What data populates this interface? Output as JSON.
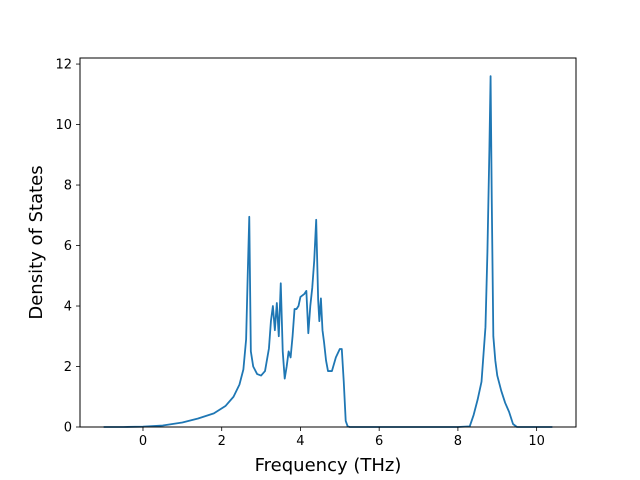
{
  "chart_data": {
    "type": "line",
    "title": "",
    "xlabel": "Frequency (THz)",
    "ylabel": "Density of States",
    "xlim": [
      -1.6,
      11.0
    ],
    "ylim": [
      0,
      12.2
    ],
    "xticks": [
      0,
      2,
      4,
      6,
      8,
      10
    ],
    "yticks": [
      0,
      2,
      4,
      6,
      8,
      10,
      12
    ],
    "grid": false,
    "legend": "none",
    "series": [
      {
        "color": "#1f77b4",
        "x": [
          -1.0,
          -0.5,
          0.0,
          0.5,
          1.0,
          1.4,
          1.8,
          2.1,
          2.3,
          2.45,
          2.55,
          2.62,
          2.66,
          2.7,
          2.74,
          2.8,
          2.9,
          3.0,
          3.1,
          3.2,
          3.25,
          3.3,
          3.35,
          3.4,
          3.45,
          3.5,
          3.55,
          3.6,
          3.65,
          3.7,
          3.75,
          3.8,
          3.85,
          3.9,
          3.95,
          4.0,
          4.05,
          4.1,
          4.15,
          4.2,
          4.25,
          4.3,
          4.35,
          4.4,
          4.45,
          4.48,
          4.52,
          4.56,
          4.6,
          4.65,
          4.7,
          4.8,
          4.9,
          5.0,
          5.05,
          5.1,
          5.15,
          5.2,
          5.25,
          5.3,
          6.0,
          7.0,
          8.0,
          8.3,
          8.4,
          8.5,
          8.6,
          8.65,
          8.7,
          8.75,
          8.8,
          8.83,
          8.86,
          8.9,
          8.95,
          9.0,
          9.1,
          9.2,
          9.3,
          9.4,
          9.5,
          9.55,
          10.0,
          10.4
        ],
        "y": [
          0,
          0,
          0.01,
          0.05,
          0.15,
          0.28,
          0.45,
          0.7,
          1.0,
          1.4,
          1.9,
          2.9,
          5.0,
          6.95,
          2.5,
          2.0,
          1.75,
          1.7,
          1.85,
          2.6,
          3.5,
          4.0,
          3.2,
          4.1,
          3.0,
          4.75,
          2.5,
          1.6,
          2.0,
          2.5,
          2.3,
          3.0,
          3.9,
          3.9,
          4.0,
          4.3,
          4.35,
          4.4,
          4.5,
          3.1,
          4.0,
          4.6,
          5.5,
          6.85,
          4.2,
          3.5,
          4.25,
          3.2,
          2.8,
          2.2,
          1.85,
          1.85,
          2.3,
          2.58,
          2.58,
          1.5,
          0.2,
          0.02,
          0,
          0,
          0,
          0,
          0,
          0.02,
          0.4,
          0.9,
          1.5,
          2.4,
          3.3,
          5.8,
          9.2,
          11.6,
          7.5,
          3.0,
          2.2,
          1.7,
          1.2,
          0.8,
          0.5,
          0.1,
          0,
          0,
          0,
          0
        ]
      }
    ]
  }
}
